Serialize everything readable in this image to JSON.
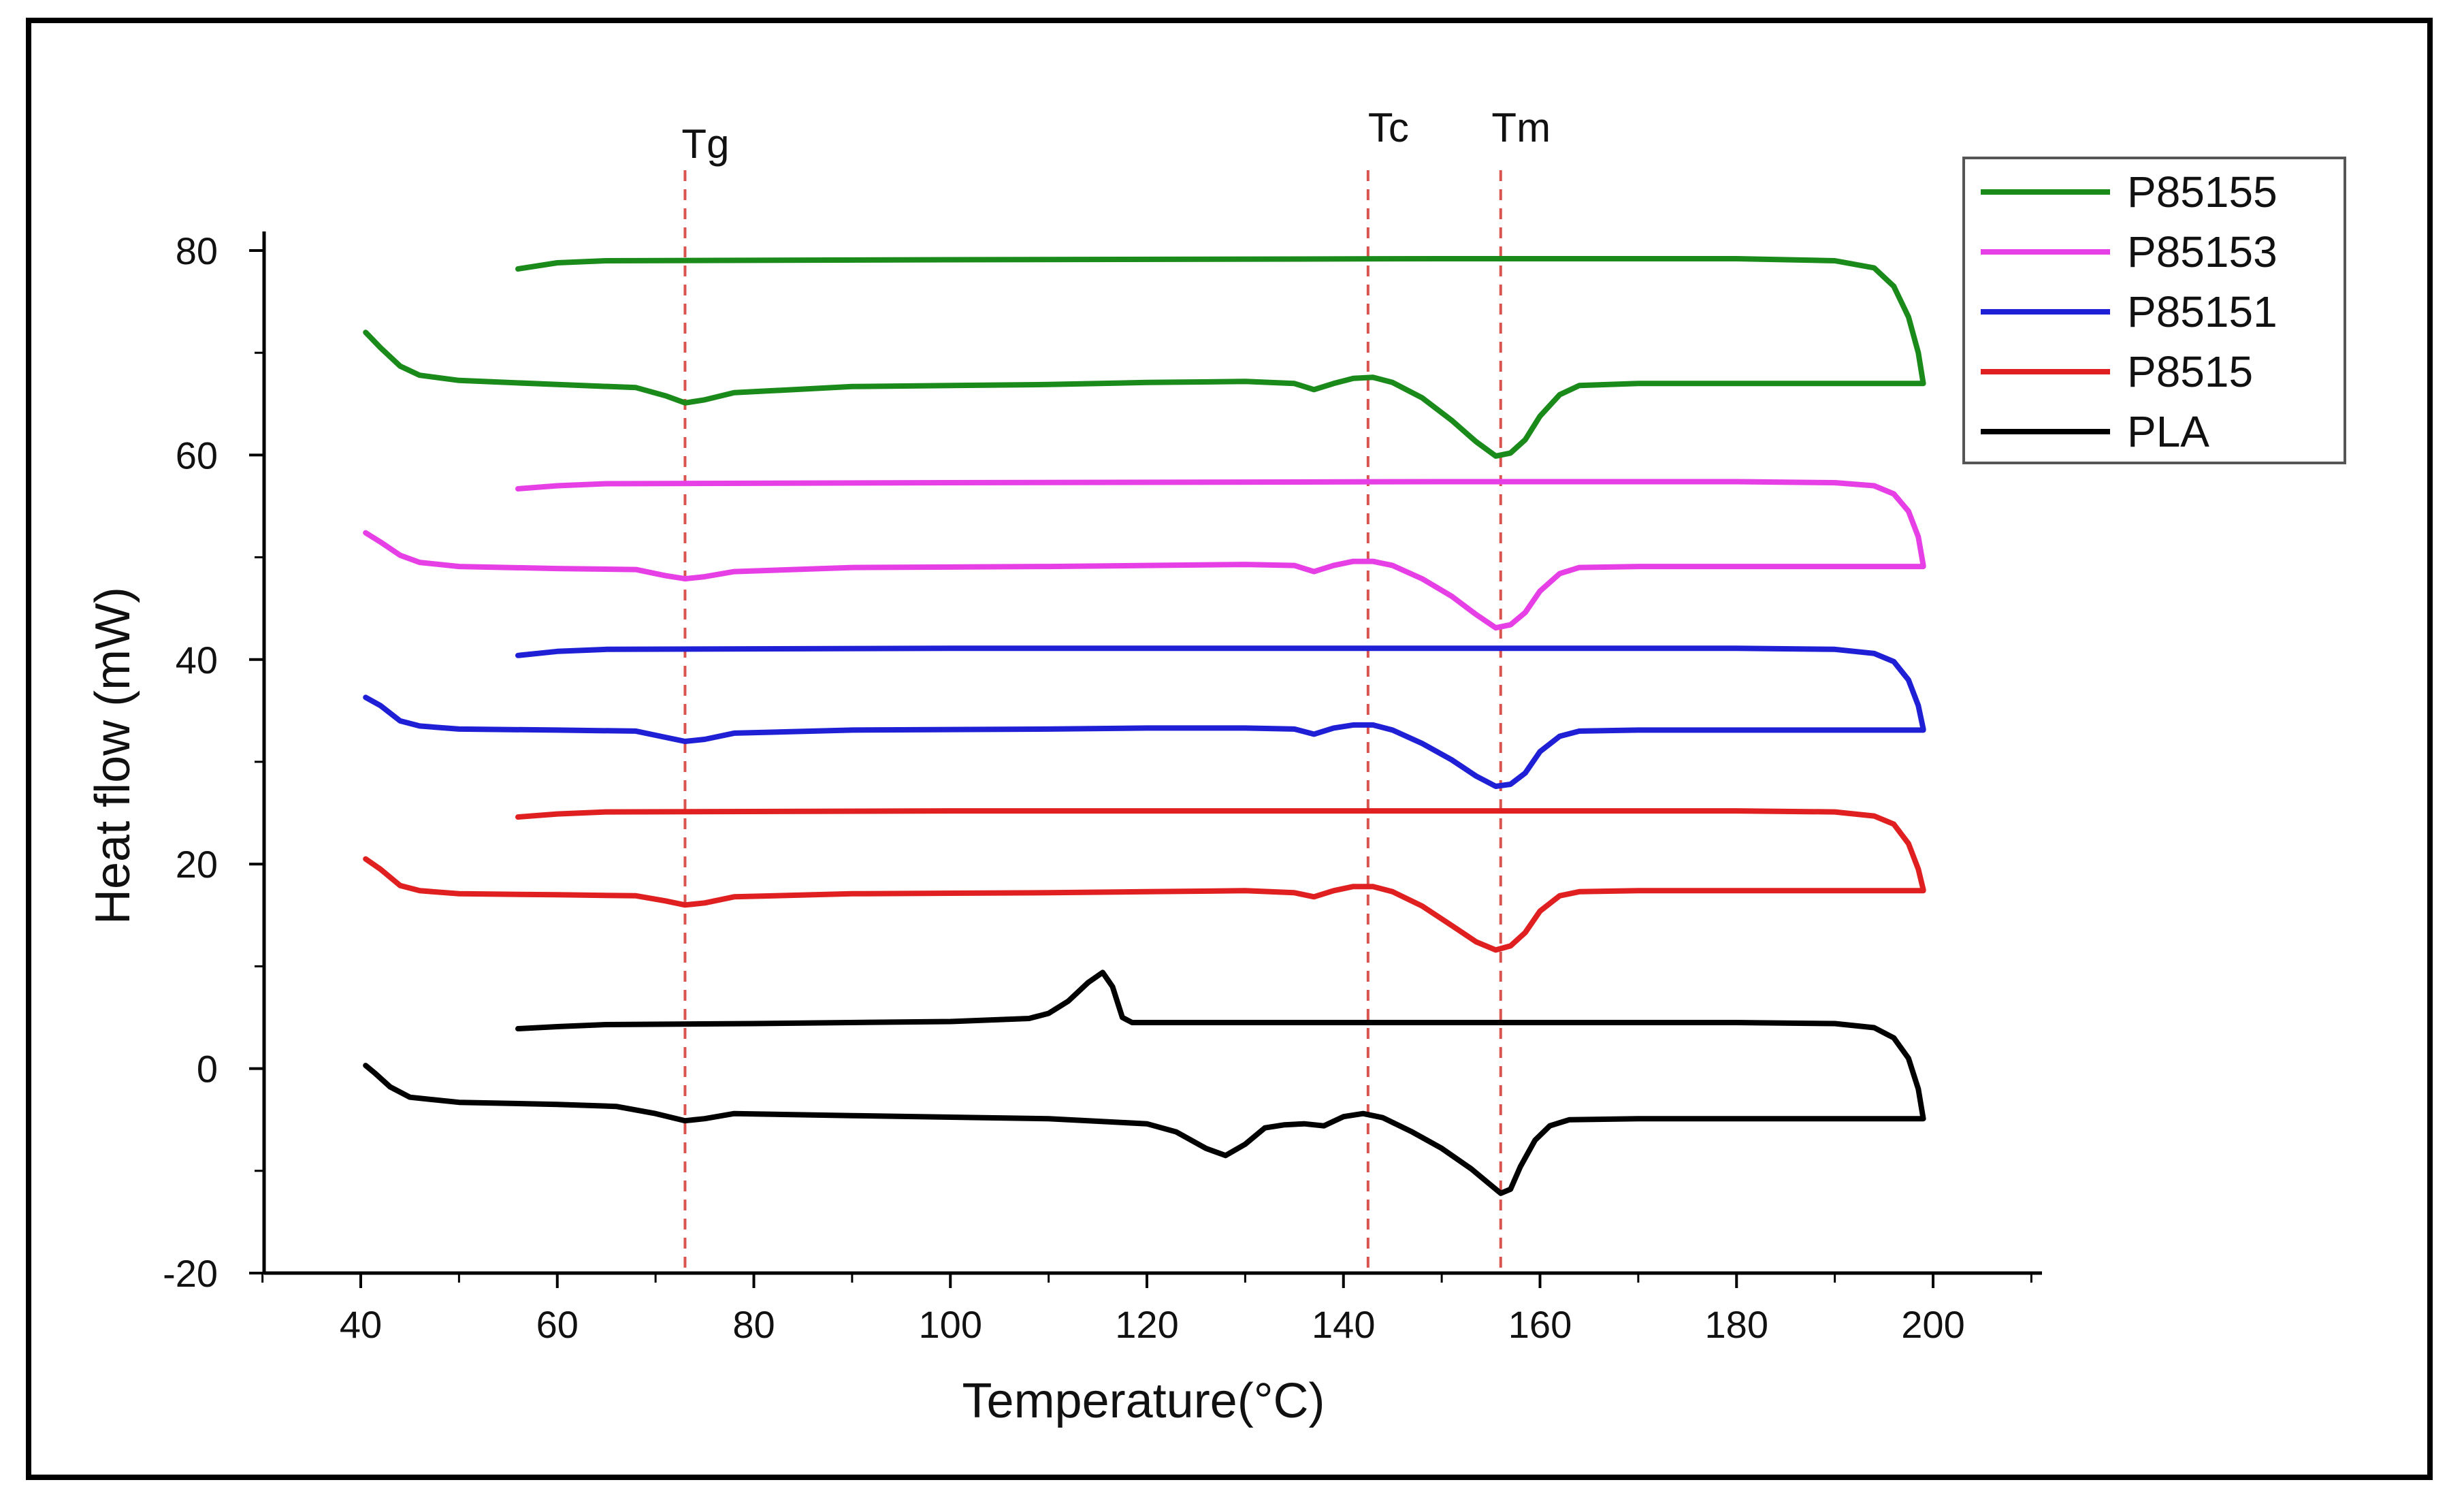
{
  "chart_data": {
    "type": "line",
    "title": "",
    "xlabel": "Temperature(°C)",
    "ylabel": "Heat flow (mW)",
    "xlim": [
      30,
      210
    ],
    "ylim": [
      -20,
      82
    ],
    "xticks": [
      40,
      60,
      80,
      100,
      120,
      140,
      160,
      180,
      200
    ],
    "yticks": [
      -20,
      0,
      20,
      40,
      60,
      80
    ],
    "grid": false,
    "legend_position": "top-right",
    "markers": [
      {
        "label": "Tg",
        "x": 73,
        "color": "#d9534f"
      },
      {
        "label": "Tc",
        "x": 142.5,
        "color": "#d9534f"
      },
      {
        "label": "Tm",
        "x": 156,
        "color": "#d9534f"
      }
    ],
    "series": [
      {
        "name": "P85155",
        "color": "#1a8a1a",
        "upper": [
          [
            56,
            78.2
          ],
          [
            60,
            78.8
          ],
          [
            65,
            79.0
          ],
          [
            100,
            79.1
          ],
          [
            150,
            79.2
          ],
          [
            180,
            79.2
          ],
          [
            190,
            79.0
          ],
          [
            194,
            78.3
          ],
          [
            196,
            76.5
          ],
          [
            197.5,
            73.5
          ],
          [
            198.5,
            70
          ],
          [
            199,
            67
          ]
        ],
        "lower": [
          [
            40.5,
            72
          ],
          [
            42,
            70.5
          ],
          [
            44,
            68.7
          ],
          [
            46,
            67.8
          ],
          [
            50,
            67.3
          ],
          [
            60,
            66.9
          ],
          [
            68,
            66.6
          ],
          [
            71,
            65.8
          ],
          [
            73,
            65.1
          ],
          [
            75,
            65.4
          ],
          [
            78,
            66.1
          ],
          [
            90,
            66.7
          ],
          [
            110,
            66.9
          ],
          [
            120,
            67.1
          ],
          [
            130,
            67.2
          ],
          [
            135,
            67.0
          ],
          [
            137,
            66.4
          ],
          [
            139,
            67.0
          ],
          [
            141,
            67.5
          ],
          [
            143,
            67.6
          ],
          [
            145,
            67.1
          ],
          [
            148,
            65.6
          ],
          [
            151,
            63.4
          ],
          [
            153.5,
            61.3
          ],
          [
            155.5,
            59.9
          ],
          [
            157,
            60.2
          ],
          [
            158.5,
            61.5
          ],
          [
            160,
            63.8
          ],
          [
            162,
            65.9
          ],
          [
            164,
            66.8
          ],
          [
            170,
            67.0
          ],
          [
            199,
            67.0
          ]
        ]
      },
      {
        "name": "P85153",
        "color": "#e63fe6",
        "upper": [
          [
            56,
            56.7
          ],
          [
            60,
            57.0
          ],
          [
            65,
            57.2
          ],
          [
            100,
            57.3
          ],
          [
            150,
            57.4
          ],
          [
            180,
            57.4
          ],
          [
            190,
            57.3
          ],
          [
            194,
            57.0
          ],
          [
            196,
            56.2
          ],
          [
            197.5,
            54.5
          ],
          [
            198.5,
            52
          ],
          [
            199,
            49.2
          ]
        ],
        "lower": [
          [
            40.5,
            52.4
          ],
          [
            42,
            51.5
          ],
          [
            44,
            50.2
          ],
          [
            46,
            49.5
          ],
          [
            50,
            49.1
          ],
          [
            60,
            48.9
          ],
          [
            68,
            48.8
          ],
          [
            71,
            48.2
          ],
          [
            73,
            47.9
          ],
          [
            75,
            48.1
          ],
          [
            78,
            48.6
          ],
          [
            90,
            49.0
          ],
          [
            110,
            49.1
          ],
          [
            120,
            49.2
          ],
          [
            130,
            49.3
          ],
          [
            135,
            49.2
          ],
          [
            137,
            48.6
          ],
          [
            139,
            49.2
          ],
          [
            141,
            49.6
          ],
          [
            143,
            49.6
          ],
          [
            145,
            49.2
          ],
          [
            148,
            47.9
          ],
          [
            151,
            46.2
          ],
          [
            153.5,
            44.4
          ],
          [
            155.5,
            43.1
          ],
          [
            157,
            43.4
          ],
          [
            158.5,
            44.6
          ],
          [
            160,
            46.7
          ],
          [
            162,
            48.4
          ],
          [
            164,
            49.0
          ],
          [
            170,
            49.1
          ],
          [
            199,
            49.1
          ]
        ]
      },
      {
        "name": "P85151",
        "color": "#1f1fd6",
        "upper": [
          [
            56,
            40.4
          ],
          [
            60,
            40.8
          ],
          [
            65,
            41.0
          ],
          [
            100,
            41.1
          ],
          [
            150,
            41.1
          ],
          [
            180,
            41.1
          ],
          [
            190,
            41.0
          ],
          [
            194,
            40.6
          ],
          [
            196,
            39.8
          ],
          [
            197.5,
            38
          ],
          [
            198.5,
            35.5
          ],
          [
            199,
            33.2
          ]
        ],
        "lower": [
          [
            40.5,
            36.3
          ],
          [
            42,
            35.5
          ],
          [
            44,
            34.0
          ],
          [
            46,
            33.5
          ],
          [
            50,
            33.2
          ],
          [
            60,
            33.1
          ],
          [
            68,
            33.0
          ],
          [
            71,
            32.4
          ],
          [
            73,
            32.0
          ],
          [
            75,
            32.2
          ],
          [
            78,
            32.8
          ],
          [
            90,
            33.1
          ],
          [
            110,
            33.2
          ],
          [
            120,
            33.3
          ],
          [
            130,
            33.3
          ],
          [
            135,
            33.2
          ],
          [
            137,
            32.7
          ],
          [
            139,
            33.3
          ],
          [
            141,
            33.6
          ],
          [
            143,
            33.6
          ],
          [
            145,
            33.1
          ],
          [
            148,
            31.8
          ],
          [
            151,
            30.2
          ],
          [
            153.5,
            28.6
          ],
          [
            155.5,
            27.6
          ],
          [
            157,
            27.8
          ],
          [
            158.5,
            28.9
          ],
          [
            160,
            31.0
          ],
          [
            162,
            32.5
          ],
          [
            164,
            33.0
          ],
          [
            170,
            33.1
          ],
          [
            199,
            33.1
          ]
        ]
      },
      {
        "name": "P8515",
        "color": "#e02020",
        "upper": [
          [
            56,
            24.6
          ],
          [
            60,
            24.9
          ],
          [
            65,
            25.1
          ],
          [
            100,
            25.2
          ],
          [
            150,
            25.2
          ],
          [
            180,
            25.2
          ],
          [
            190,
            25.1
          ],
          [
            194,
            24.7
          ],
          [
            196,
            23.9
          ],
          [
            197.5,
            22.0
          ],
          [
            198.5,
            19.5
          ],
          [
            199,
            17.5
          ]
        ],
        "lower": [
          [
            40.5,
            20.5
          ],
          [
            42,
            19.5
          ],
          [
            44,
            17.9
          ],
          [
            46,
            17.4
          ],
          [
            50,
            17.1
          ],
          [
            60,
            17.0
          ],
          [
            68,
            16.9
          ],
          [
            71,
            16.4
          ],
          [
            73,
            16.0
          ],
          [
            75,
            16.2
          ],
          [
            78,
            16.8
          ],
          [
            90,
            17.1
          ],
          [
            110,
            17.2
          ],
          [
            120,
            17.3
          ],
          [
            130,
            17.4
          ],
          [
            135,
            17.2
          ],
          [
            137,
            16.8
          ],
          [
            139,
            17.4
          ],
          [
            141,
            17.8
          ],
          [
            143,
            17.8
          ],
          [
            145,
            17.3
          ],
          [
            148,
            15.9
          ],
          [
            151,
            14.0
          ],
          [
            153.5,
            12.4
          ],
          [
            155.5,
            11.6
          ],
          [
            157,
            12.0
          ],
          [
            158.5,
            13.3
          ],
          [
            160,
            15.4
          ],
          [
            162,
            16.9
          ],
          [
            164,
            17.3
          ],
          [
            170,
            17.4
          ],
          [
            199,
            17.4
          ]
        ]
      },
      {
        "name": "PLA",
        "color": "#000000",
        "upper": [
          [
            56,
            3.9
          ],
          [
            60,
            4.1
          ],
          [
            65,
            4.3
          ],
          [
            80,
            4.4
          ],
          [
            100,
            4.6
          ],
          [
            108,
            4.9
          ],
          [
            110,
            5.4
          ],
          [
            112,
            6.6
          ],
          [
            114,
            8.4
          ],
          [
            115.5,
            9.4
          ],
          [
            116.5,
            8.0
          ],
          [
            117.5,
            5.0
          ],
          [
            118.5,
            4.5
          ],
          [
            130,
            4.5
          ],
          [
            150,
            4.5
          ],
          [
            180,
            4.5
          ],
          [
            190,
            4.4
          ],
          [
            194,
            4.0
          ],
          [
            196,
            3.0
          ],
          [
            197.5,
            1.0
          ],
          [
            198.5,
            -2.0
          ],
          [
            199,
            -4.9
          ]
        ],
        "lower": [
          [
            40.5,
            0.3
          ],
          [
            41.5,
            -0.5
          ],
          [
            43,
            -1.8
          ],
          [
            45,
            -2.8
          ],
          [
            50,
            -3.3
          ],
          [
            60,
            -3.5
          ],
          [
            66,
            -3.7
          ],
          [
            70,
            -4.4
          ],
          [
            73,
            -5.1
          ],
          [
            75,
            -4.9
          ],
          [
            78,
            -4.4
          ],
          [
            90,
            -4.6
          ],
          [
            110,
            -4.9
          ],
          [
            120,
            -5.4
          ],
          [
            123,
            -6.2
          ],
          [
            126,
            -7.8
          ],
          [
            128,
            -8.5
          ],
          [
            130,
            -7.4
          ],
          [
            132,
            -5.8
          ],
          [
            134,
            -5.5
          ],
          [
            136,
            -5.4
          ],
          [
            138,
            -5.6
          ],
          [
            140,
            -4.7
          ],
          [
            142,
            -4.4
          ],
          [
            144,
            -4.8
          ],
          [
            147,
            -6.2
          ],
          [
            150,
            -7.8
          ],
          [
            153,
            -9.8
          ],
          [
            155,
            -11.4
          ],
          [
            156,
            -12.2
          ],
          [
            157,
            -11.8
          ],
          [
            158,
            -9.6
          ],
          [
            159.5,
            -7.0
          ],
          [
            161,
            -5.6
          ],
          [
            163,
            -5.0
          ],
          [
            170,
            -4.9
          ],
          [
            199,
            -4.9
          ]
        ]
      }
    ]
  }
}
